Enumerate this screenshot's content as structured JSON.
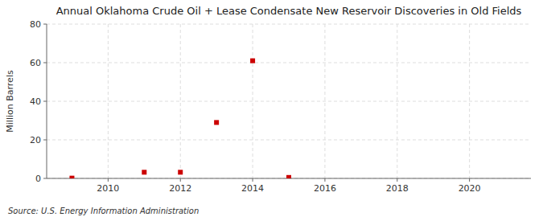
{
  "chart_data": {
    "type": "scatter",
    "title": "Annual Oklahoma Crude Oil + Lease Condensate New Reservoir Discoveries in Old Fields",
    "y_label": "Million Barrels",
    "annotations": [
      "Source: U.S. Energy Information Administration"
    ],
    "x": [
      2009,
      2011,
      2012,
      2013,
      2014,
      2015
    ],
    "values": [
      0.15,
      3.2,
      3.2,
      29.0,
      61.0,
      0.5
    ],
    "color": "#cc0000",
    "marker": "square",
    "xlim": [
      2008.3,
      2021.7
    ],
    "ylim": [
      0,
      80
    ],
    "xticks": [
      2010,
      2012,
      2014,
      2016,
      2018,
      2020
    ],
    "yticks": [
      0,
      20,
      40,
      60,
      80
    ],
    "grid": true
  }
}
